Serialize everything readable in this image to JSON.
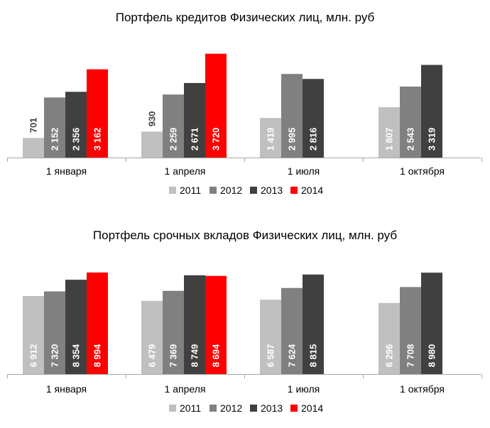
{
  "chart_data": [
    {
      "type": "bar",
      "title": "Портфель кредитов Физических лиц, млн. руб",
      "categories": [
        "1 января",
        "1 апреля",
        "1 июля",
        "1 октября"
      ],
      "ylim": [
        0,
        4500
      ],
      "series": [
        {
          "name": "2011",
          "color": "#c0c0c0",
          "values": [
            701,
            930,
            1419,
            1807
          ],
          "labels": [
            "701",
            "930",
            "1 419",
            "1 807"
          ]
        },
        {
          "name": "2012",
          "color": "#808080",
          "values": [
            2152,
            2259,
            2995,
            2543
          ],
          "labels": [
            "2 152",
            "2 259",
            "2 995",
            "2 543"
          ]
        },
        {
          "name": "2013",
          "color": "#404040",
          "values": [
            2356,
            2671,
            2816,
            3319
          ],
          "labels": [
            "2 356",
            "2 671",
            "2 816",
            "3 319"
          ]
        },
        {
          "name": "2014",
          "color": "#ff0000",
          "values": [
            3162,
            3720,
            null,
            null
          ],
          "labels": [
            "3 162",
            "3 720",
            "",
            ""
          ]
        }
      ],
      "legend_position": "bottom"
    },
    {
      "type": "bar",
      "title": "Портфель срочных вкладов Физических лиц, млн. руб",
      "categories": [
        "1 января",
        "1 апреля",
        "1 июля",
        "1 октября"
      ],
      "ylim": [
        0,
        11000
      ],
      "series": [
        {
          "name": "2011",
          "color": "#c0c0c0",
          "values": [
            6912,
            6479,
            6587,
            6296
          ],
          "labels": [
            "6 912",
            "6 479",
            "6 587",
            "6 296"
          ]
        },
        {
          "name": "2012",
          "color": "#808080",
          "values": [
            7320,
            7369,
            7624,
            7708
          ],
          "labels": [
            "7 320",
            "7 369",
            "7 624",
            "7 708"
          ]
        },
        {
          "name": "2013",
          "color": "#404040",
          "values": [
            8354,
            8749,
            8815,
            8980
          ],
          "labels": [
            "8 354",
            "8 749",
            "8 815",
            "8 980"
          ]
        },
        {
          "name": "2014",
          "color": "#ff0000",
          "values": [
            8994,
            8694,
            null,
            null
          ],
          "labels": [
            "8 994",
            "8 694",
            "",
            ""
          ]
        }
      ],
      "legend_position": "bottom"
    }
  ]
}
